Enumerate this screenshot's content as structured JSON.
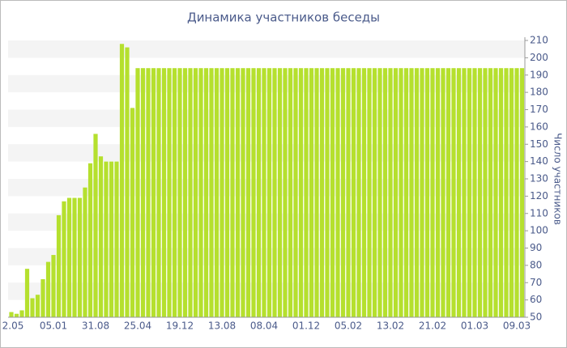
{
  "chart_data": {
    "type": "bar",
    "title": "Динамика участников беседы",
    "y_label": "Число участников",
    "categories": [
      "2.05",
      null,
      null,
      null,
      null,
      null,
      null,
      null,
      "05.01",
      null,
      null,
      null,
      null,
      null,
      null,
      null,
      "31.08",
      null,
      null,
      null,
      null,
      null,
      null,
      null,
      "25.04",
      null,
      null,
      null,
      null,
      null,
      null,
      null,
      "19.12",
      null,
      null,
      null,
      null,
      null,
      null,
      null,
      "13.08",
      null,
      null,
      null,
      null,
      null,
      null,
      null,
      "08.04",
      null,
      null,
      null,
      null,
      null,
      null,
      null,
      "01.12",
      null,
      null,
      null,
      null,
      null,
      null,
      null,
      "05.02",
      null,
      null,
      null,
      null,
      null,
      null,
      null,
      "13.02",
      null,
      null,
      null,
      null,
      null,
      null,
      null,
      "21.02",
      null,
      null,
      null,
      null,
      null,
      null,
      null,
      "01.03",
      null,
      null,
      null,
      null,
      null,
      null,
      null,
      "09.03",
      null
    ],
    "values": [
      53,
      52,
      54,
      78,
      61,
      63,
      72,
      82,
      86,
      109,
      117,
      119,
      119,
      119,
      125,
      139,
      156,
      143,
      140,
      140,
      140,
      208,
      206,
      171,
      194,
      194,
      194,
      194,
      194,
      194,
      194,
      194,
      194,
      194,
      194,
      194,
      194,
      194,
      194,
      194,
      194,
      194,
      194,
      194,
      194,
      194,
      194,
      194,
      194,
      194,
      194,
      194,
      194,
      194,
      194,
      194,
      194,
      194,
      194,
      194,
      194,
      194,
      194,
      194,
      194,
      194,
      194,
      194,
      194,
      194,
      194,
      194,
      194,
      194,
      194,
      194,
      194,
      194,
      194,
      194,
      194,
      194,
      194,
      194,
      194,
      194,
      194,
      194,
      194,
      194,
      194,
      194,
      194,
      194,
      194,
      194,
      194,
      194
    ],
    "color": "#b5e02e",
    "ylim": [
      50,
      210
    ],
    "yticks": [
      50,
      60,
      70,
      80,
      90,
      100,
      110,
      120,
      130,
      140,
      150,
      160,
      170,
      180,
      190,
      200,
      210
    ],
    "grid": true
  }
}
